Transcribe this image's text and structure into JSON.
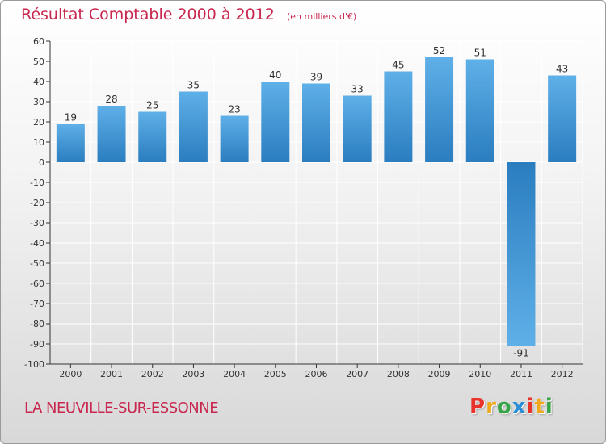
{
  "title": "Résultat Comptable 2000 à 2012",
  "subtitle": "(en milliers d'€)",
  "commune": "LA NEUVILLE-SUR-ESSONNE",
  "logo": {
    "text": "Proxiti",
    "letter_colors": [
      "#e8332a",
      "#f0a91b",
      "#37a547",
      "#2a8fd6",
      "#e8332a",
      "#f0a91b",
      "#37a547"
    ]
  },
  "colors": {
    "bar_light": "#5fb0e8",
    "bar_dark": "#2a7dbf",
    "title": "#c8284f",
    "axis": "#333333",
    "grid": "#ffffff"
  },
  "chart_data": {
    "type": "bar",
    "title": "Résultat Comptable 2000 à 2012",
    "subtitle": "(en milliers d'€)",
    "categories": [
      "2000",
      "2001",
      "2002",
      "2003",
      "2004",
      "2005",
      "2006",
      "2007",
      "2008",
      "2009",
      "2010",
      "2011",
      "2012"
    ],
    "values": [
      19,
      28,
      25,
      35,
      23,
      40,
      39,
      33,
      45,
      52,
      51,
      -91,
      43
    ],
    "labels": [
      "19",
      "28",
      "25",
      "35",
      "23",
      "40",
      "39",
      "33",
      "45",
      "52",
      "51",
      "-91",
      "43"
    ],
    "ylim": [
      -100,
      60
    ],
    "yticks": [
      60,
      50,
      40,
      30,
      20,
      10,
      0,
      -10,
      -20,
      -30,
      -40,
      -50,
      -60,
      -70,
      -80,
      -90,
      -100
    ],
    "grid": true,
    "legend": "none"
  }
}
